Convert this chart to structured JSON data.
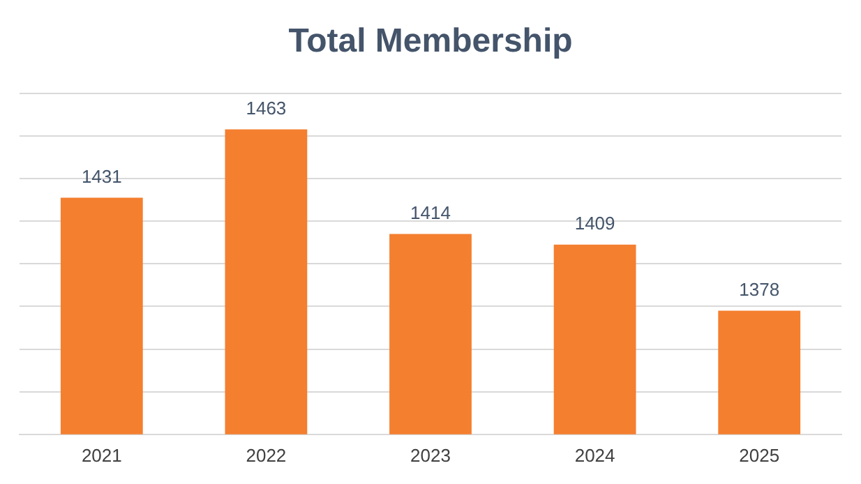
{
  "chart_data": {
    "type": "bar",
    "title": "Total Membership",
    "categories": [
      "2021",
      "2022",
      "2023",
      "2024",
      "2025"
    ],
    "values": [
      1431,
      1463,
      1414,
      1409,
      1378
    ],
    "color": "#f47f2f",
    "ylim": [
      1320,
      1480
    ],
    "yticks": [
      {
        "value": 1320,
        "label": null
      },
      {
        "value": 1340,
        "label": null
      },
      {
        "value": 1360,
        "label": null
      },
      {
        "value": 1380,
        "label": null
      },
      {
        "value": 1400,
        "label": null
      },
      {
        "value": 1420,
        "label": null
      },
      {
        "value": 1440,
        "label": null
      },
      {
        "value": 1460,
        "label": null
      },
      {
        "value": 1480,
        "label": null
      }
    ],
    "grid": "y",
    "data_labels": true,
    "tick_labels": "x"
  }
}
